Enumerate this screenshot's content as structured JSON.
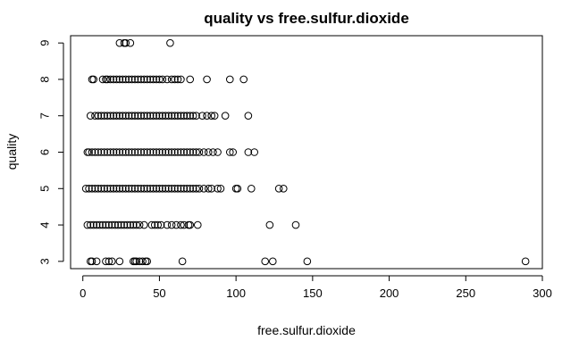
{
  "chart_data": {
    "type": "scatter",
    "title": "quality vs free.sulfur.dioxide",
    "xlabel": "free.sulfur.dioxide",
    "ylabel": "quality",
    "xlim": [
      -8,
      300
    ],
    "ylim": [
      2.8,
      9.2
    ],
    "x_ticks": [
      0,
      50,
      100,
      150,
      200,
      250,
      300
    ],
    "y_ticks": [
      3,
      4,
      5,
      6,
      7,
      8,
      9
    ],
    "grid": false,
    "legend": "none",
    "marker": "open-circle",
    "colors": {
      "background": "#ffffff",
      "axis": "#000000",
      "points": "#000000"
    },
    "series": [
      {
        "values": [
          {
            "x": 24,
            "y": 9
          },
          {
            "x": 27,
            "y": 9
          },
          {
            "x": 28,
            "y": 9
          },
          {
            "x": 31,
            "y": 9
          },
          {
            "x": 57,
            "y": 9
          },
          {
            "x": 6,
            "y": 8
          },
          {
            "x": 7,
            "y": 8
          },
          {
            "x": 13,
            "y": 8
          },
          {
            "x": 15,
            "y": 8
          },
          {
            "x": 16,
            "y": 8
          },
          {
            "x": 18,
            "y": 8
          },
          {
            "x": 20,
            "y": 8
          },
          {
            "x": 22,
            "y": 8
          },
          {
            "x": 24,
            "y": 8
          },
          {
            "x": 26,
            "y": 8
          },
          {
            "x": 28,
            "y": 8
          },
          {
            "x": 30,
            "y": 8
          },
          {
            "x": 32,
            "y": 8
          },
          {
            "x": 34,
            "y": 8
          },
          {
            "x": 36,
            "y": 8
          },
          {
            "x": 38,
            "y": 8
          },
          {
            "x": 40,
            "y": 8
          },
          {
            "x": 42,
            "y": 8
          },
          {
            "x": 44,
            "y": 8
          },
          {
            "x": 46,
            "y": 8
          },
          {
            "x": 48,
            "y": 8
          },
          {
            "x": 50,
            "y": 8
          },
          {
            "x": 52,
            "y": 8
          },
          {
            "x": 55,
            "y": 8
          },
          {
            "x": 58,
            "y": 8
          },
          {
            "x": 60,
            "y": 8
          },
          {
            "x": 62,
            "y": 8
          },
          {
            "x": 64,
            "y": 8
          },
          {
            "x": 70,
            "y": 8
          },
          {
            "x": 81,
            "y": 8
          },
          {
            "x": 96,
            "y": 8
          },
          {
            "x": 105,
            "y": 8
          },
          {
            "x": 5,
            "y": 7
          },
          {
            "x": 8,
            "y": 7
          },
          {
            "x": 10,
            "y": 7
          },
          {
            "x": 12,
            "y": 7
          },
          {
            "x": 14,
            "y": 7
          },
          {
            "x": 16,
            "y": 7
          },
          {
            "x": 18,
            "y": 7
          },
          {
            "x": 20,
            "y": 7
          },
          {
            "x": 22,
            "y": 7
          },
          {
            "x": 24,
            "y": 7
          },
          {
            "x": 26,
            "y": 7
          },
          {
            "x": 28,
            "y": 7
          },
          {
            "x": 30,
            "y": 7
          },
          {
            "x": 32,
            "y": 7
          },
          {
            "x": 34,
            "y": 7
          },
          {
            "x": 36,
            "y": 7
          },
          {
            "x": 38,
            "y": 7
          },
          {
            "x": 40,
            "y": 7
          },
          {
            "x": 42,
            "y": 7
          },
          {
            "x": 44,
            "y": 7
          },
          {
            "x": 46,
            "y": 7
          },
          {
            "x": 48,
            "y": 7
          },
          {
            "x": 50,
            "y": 7
          },
          {
            "x": 52,
            "y": 7
          },
          {
            "x": 54,
            "y": 7
          },
          {
            "x": 56,
            "y": 7
          },
          {
            "x": 58,
            "y": 7
          },
          {
            "x": 60,
            "y": 7
          },
          {
            "x": 62,
            "y": 7
          },
          {
            "x": 64,
            "y": 7
          },
          {
            "x": 66,
            "y": 7
          },
          {
            "x": 68,
            "y": 7
          },
          {
            "x": 70,
            "y": 7
          },
          {
            "x": 72,
            "y": 7
          },
          {
            "x": 74,
            "y": 7
          },
          {
            "x": 78,
            "y": 7
          },
          {
            "x": 81,
            "y": 7
          },
          {
            "x": 84,
            "y": 7
          },
          {
            "x": 86,
            "y": 7
          },
          {
            "x": 93,
            "y": 7
          },
          {
            "x": 108,
            "y": 7
          },
          {
            "x": 3,
            "y": 6
          },
          {
            "x": 4,
            "y": 6
          },
          {
            "x": 6,
            "y": 6
          },
          {
            "x": 8,
            "y": 6
          },
          {
            "x": 10,
            "y": 6
          },
          {
            "x": 12,
            "y": 6
          },
          {
            "x": 14,
            "y": 6
          },
          {
            "x": 16,
            "y": 6
          },
          {
            "x": 18,
            "y": 6
          },
          {
            "x": 20,
            "y": 6
          },
          {
            "x": 22,
            "y": 6
          },
          {
            "x": 24,
            "y": 6
          },
          {
            "x": 26,
            "y": 6
          },
          {
            "x": 28,
            "y": 6
          },
          {
            "x": 30,
            "y": 6
          },
          {
            "x": 32,
            "y": 6
          },
          {
            "x": 34,
            "y": 6
          },
          {
            "x": 36,
            "y": 6
          },
          {
            "x": 38,
            "y": 6
          },
          {
            "x": 40,
            "y": 6
          },
          {
            "x": 42,
            "y": 6
          },
          {
            "x": 44,
            "y": 6
          },
          {
            "x": 46,
            "y": 6
          },
          {
            "x": 48,
            "y": 6
          },
          {
            "x": 50,
            "y": 6
          },
          {
            "x": 52,
            "y": 6
          },
          {
            "x": 54,
            "y": 6
          },
          {
            "x": 56,
            "y": 6
          },
          {
            "x": 58,
            "y": 6
          },
          {
            "x": 60,
            "y": 6
          },
          {
            "x": 62,
            "y": 6
          },
          {
            "x": 64,
            "y": 6
          },
          {
            "x": 66,
            "y": 6
          },
          {
            "x": 68,
            "y": 6
          },
          {
            "x": 70,
            "y": 6
          },
          {
            "x": 72,
            "y": 6
          },
          {
            "x": 74,
            "y": 6
          },
          {
            "x": 76,
            "y": 6
          },
          {
            "x": 79,
            "y": 6
          },
          {
            "x": 82,
            "y": 6
          },
          {
            "x": 85,
            "y": 6
          },
          {
            "x": 88,
            "y": 6
          },
          {
            "x": 96,
            "y": 6
          },
          {
            "x": 98,
            "y": 6
          },
          {
            "x": 108,
            "y": 6
          },
          {
            "x": 112,
            "y": 6
          },
          {
            "x": 2,
            "y": 5
          },
          {
            "x": 4,
            "y": 5
          },
          {
            "x": 6,
            "y": 5
          },
          {
            "x": 8,
            "y": 5
          },
          {
            "x": 10,
            "y": 5
          },
          {
            "x": 12,
            "y": 5
          },
          {
            "x": 14,
            "y": 5
          },
          {
            "x": 16,
            "y": 5
          },
          {
            "x": 18,
            "y": 5
          },
          {
            "x": 20,
            "y": 5
          },
          {
            "x": 22,
            "y": 5
          },
          {
            "x": 24,
            "y": 5
          },
          {
            "x": 26,
            "y": 5
          },
          {
            "x": 28,
            "y": 5
          },
          {
            "x": 30,
            "y": 5
          },
          {
            "x": 32,
            "y": 5
          },
          {
            "x": 34,
            "y": 5
          },
          {
            "x": 36,
            "y": 5
          },
          {
            "x": 38,
            "y": 5
          },
          {
            "x": 40,
            "y": 5
          },
          {
            "x": 42,
            "y": 5
          },
          {
            "x": 44,
            "y": 5
          },
          {
            "x": 46,
            "y": 5
          },
          {
            "x": 48,
            "y": 5
          },
          {
            "x": 50,
            "y": 5
          },
          {
            "x": 52,
            "y": 5
          },
          {
            "x": 54,
            "y": 5
          },
          {
            "x": 56,
            "y": 5
          },
          {
            "x": 58,
            "y": 5
          },
          {
            "x": 60,
            "y": 5
          },
          {
            "x": 62,
            "y": 5
          },
          {
            "x": 64,
            "y": 5
          },
          {
            "x": 66,
            "y": 5
          },
          {
            "x": 68,
            "y": 5
          },
          {
            "x": 70,
            "y": 5
          },
          {
            "x": 72,
            "y": 5
          },
          {
            "x": 74,
            "y": 5
          },
          {
            "x": 76,
            "y": 5
          },
          {
            "x": 79,
            "y": 5
          },
          {
            "x": 82,
            "y": 5
          },
          {
            "x": 84,
            "y": 5
          },
          {
            "x": 88,
            "y": 5
          },
          {
            "x": 90,
            "y": 5
          },
          {
            "x": 100,
            "y": 5
          },
          {
            "x": 101,
            "y": 5
          },
          {
            "x": 110,
            "y": 5
          },
          {
            "x": 128,
            "y": 5
          },
          {
            "x": 131,
            "y": 5
          },
          {
            "x": 3,
            "y": 4
          },
          {
            "x": 5,
            "y": 4
          },
          {
            "x": 7,
            "y": 4
          },
          {
            "x": 9,
            "y": 4
          },
          {
            "x": 11,
            "y": 4
          },
          {
            "x": 13,
            "y": 4
          },
          {
            "x": 15,
            "y": 4
          },
          {
            "x": 17,
            "y": 4
          },
          {
            "x": 19,
            "y": 4
          },
          {
            "x": 21,
            "y": 4
          },
          {
            "x": 23,
            "y": 4
          },
          {
            "x": 25,
            "y": 4
          },
          {
            "x": 27,
            "y": 4
          },
          {
            "x": 29,
            "y": 4
          },
          {
            "x": 31,
            "y": 4
          },
          {
            "x": 33,
            "y": 4
          },
          {
            "x": 35,
            "y": 4
          },
          {
            "x": 37,
            "y": 4
          },
          {
            "x": 40,
            "y": 4
          },
          {
            "x": 45,
            "y": 4
          },
          {
            "x": 47,
            "y": 4
          },
          {
            "x": 49,
            "y": 4
          },
          {
            "x": 51,
            "y": 4
          },
          {
            "x": 55,
            "y": 4
          },
          {
            "x": 58,
            "y": 4
          },
          {
            "x": 61,
            "y": 4
          },
          {
            "x": 64,
            "y": 4
          },
          {
            "x": 66,
            "y": 4
          },
          {
            "x": 69,
            "y": 4
          },
          {
            "x": 70,
            "y": 4
          },
          {
            "x": 75,
            "y": 4
          },
          {
            "x": 122,
            "y": 4
          },
          {
            "x": 139,
            "y": 4
          },
          {
            "x": 5,
            "y": 3
          },
          {
            "x": 6,
            "y": 3
          },
          {
            "x": 9,
            "y": 3
          },
          {
            "x": 15,
            "y": 3
          },
          {
            "x": 17,
            "y": 3
          },
          {
            "x": 19,
            "y": 3
          },
          {
            "x": 24,
            "y": 3
          },
          {
            "x": 33,
            "y": 3
          },
          {
            "x": 34,
            "y": 3
          },
          {
            "x": 35,
            "y": 3
          },
          {
            "x": 37,
            "y": 3
          },
          {
            "x": 39,
            "y": 3
          },
          {
            "x": 41,
            "y": 3
          },
          {
            "x": 42,
            "y": 3
          },
          {
            "x": 65,
            "y": 3
          },
          {
            "x": 119,
            "y": 3
          },
          {
            "x": 124,
            "y": 3
          },
          {
            "x": 146.5,
            "y": 3
          },
          {
            "x": 289,
            "y": 3
          }
        ]
      }
    ]
  }
}
